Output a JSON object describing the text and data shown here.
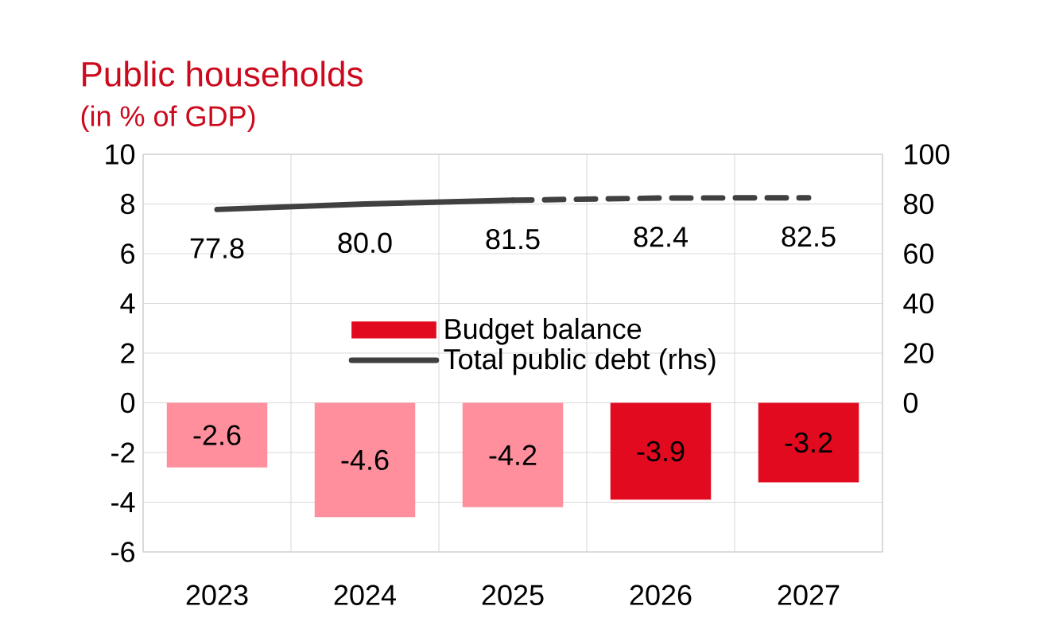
{
  "chart_data": {
    "type": "bar",
    "title": "Public households",
    "subtitle": "(in % of GDP)",
    "categories": [
      "2023",
      "2024",
      "2025",
      "2026",
      "2027"
    ],
    "series": [
      {
        "name": "Budget balance",
        "color": "#e10a1e",
        "colors": [
          "#ff8f9c",
          "#ff8f9c",
          "#ff8f9c",
          "#e10a1e",
          "#e10a1e"
        ],
        "values": [
          -2.6,
          -4.6,
          -4.2,
          -3.9,
          -3.2
        ],
        "value_labels": [
          "-2.6",
          "-4.6",
          "-4.2",
          "-3.9",
          "-3.2"
        ]
      },
      {
        "name": "Total public debt (rhs)",
        "type": "line",
        "axis": "y2",
        "color": "#404040",
        "line_style": "solid",
        "values": [
          77.8,
          80.0,
          81.5,
          null,
          null
        ],
        "value_labels": [
          "77.8",
          "80.0",
          "81.5",
          null,
          null
        ]
      },
      {
        "type": "line",
        "axis": "y2",
        "color": "#404040",
        "line_style": "dashed",
        "values": [
          null,
          null,
          81.5,
          82.4,
          82.5
        ],
        "value_labels": [
          null,
          null,
          null,
          "82.4",
          "82.5"
        ]
      }
    ],
    "ylim": [
      -6,
      10
    ],
    "yticks": [
      -6,
      -4,
      -2,
      0,
      2,
      4,
      6,
      8,
      10
    ],
    "y2lim": [
      -60,
      100
    ],
    "y2ticks": [
      0,
      20,
      40,
      60,
      80,
      100
    ],
    "grid": true,
    "legend": "center"
  }
}
